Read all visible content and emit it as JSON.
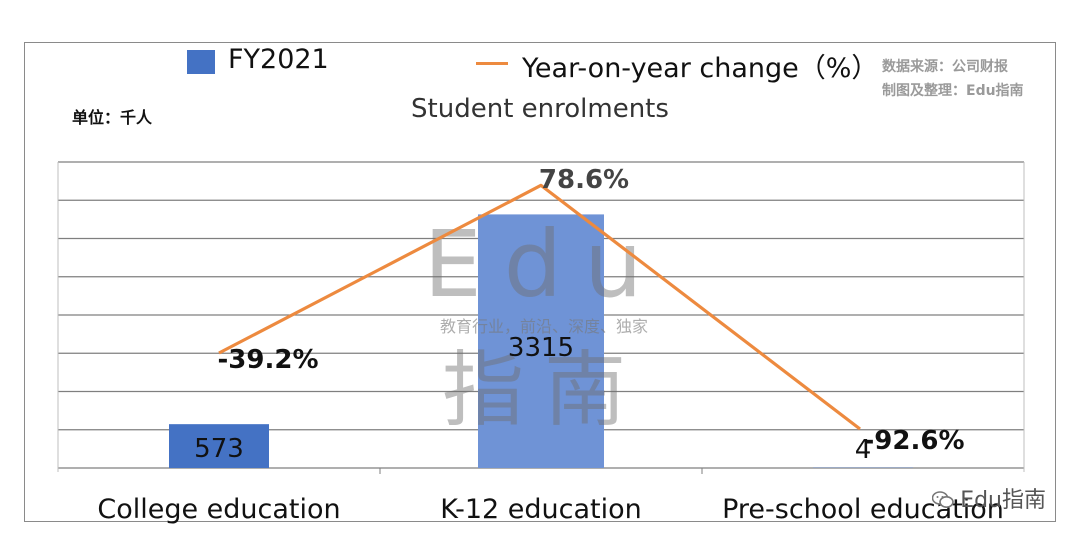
{
  "legend": {
    "bar_label": "FY2021",
    "line_label": "Year-on-year change（%）"
  },
  "source": {
    "line1": "数据来源：公司财报",
    "line2": "制图及整理：Edu指南"
  },
  "unit_label": "单位：千人",
  "watermark": {
    "big": "Edu",
    "tagline": "教育行业，前沿、深度、独家",
    "cn": "指南"
  },
  "footer": "Edu指南",
  "colors": {
    "bar": "#4472C4",
    "bar_highlight": "#6F93D6",
    "line": "#ED8A3F",
    "grid": "#7f7f7f"
  },
  "chart_data": {
    "type": "bar",
    "title": "Student enrolments",
    "categories": [
      "College education",
      "K-12 education",
      "Pre-school education"
    ],
    "series": [
      {
        "name": "FY2021",
        "values": [
          573,
          3315,
          4
        ],
        "value_labels": [
          "573",
          "3315",
          "4"
        ]
      },
      {
        "name": "Year-on-year change（%）",
        "type": "line",
        "values": [
          -39.2,
          78.6,
          -92.6
        ],
        "value_labels": [
          "-39.2%",
          "78.6%",
          "-92.6%"
        ]
      }
    ],
    "ylim": [
      0,
      4000
    ],
    "grid": true,
    "legend_position": "top"
  }
}
